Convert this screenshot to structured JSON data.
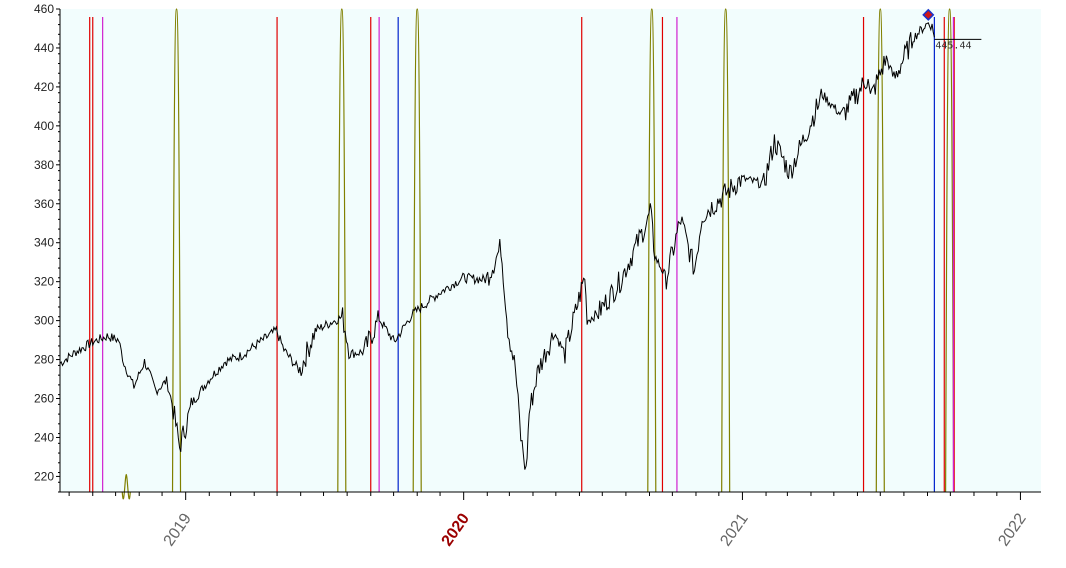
{
  "chart_data": {
    "type": "line",
    "title": "",
    "xlabel": "",
    "ylabel": "",
    "x_range": [
      "2018-07-20",
      "2022-01-28"
    ],
    "ylim": [
      212,
      460
    ],
    "yticks": [
      220,
      240,
      260,
      280,
      300,
      320,
      340,
      360,
      380,
      400,
      420,
      440,
      460
    ],
    "xticks": [
      {
        "label": "2019",
        "date": "2019-01-01",
        "highlight": false
      },
      {
        "label": "2020",
        "date": "2020-01-01",
        "highlight": true
      },
      {
        "label": "2021",
        "date": "2021-01-01",
        "highlight": false
      },
      {
        "label": "2022",
        "date": "2022-01-01",
        "highlight": false
      }
    ],
    "background": "#f2fdfd",
    "grid": false,
    "series": [
      {
        "color": "#000000",
        "points": [
          [
            "2018-07-20",
            278
          ],
          [
            "2018-08-10",
            284
          ],
          [
            "2018-09-01",
            289
          ],
          [
            "2018-09-20",
            292
          ],
          [
            "2018-10-05",
            290
          ],
          [
            "2018-10-12",
            278
          ],
          [
            "2018-10-25",
            266
          ],
          [
            "2018-11-08",
            279
          ],
          [
            "2018-11-23",
            264
          ],
          [
            "2018-12-07",
            269
          ],
          [
            "2018-12-14",
            258
          ],
          [
            "2018-12-24",
            235
          ],
          [
            "2019-01-10",
            258
          ],
          [
            "2019-02-01",
            270
          ],
          [
            "2019-02-22",
            279
          ],
          [
            "2019-03-15",
            282
          ],
          [
            "2019-04-05",
            288
          ],
          [
            "2019-04-30",
            295
          ],
          [
            "2019-05-10",
            285
          ],
          [
            "2019-05-31",
            274
          ],
          [
            "2019-06-20",
            295
          ],
          [
            "2019-07-26",
            302
          ],
          [
            "2019-08-05",
            283
          ],
          [
            "2019-08-23",
            284
          ],
          [
            "2019-09-12",
            301
          ],
          [
            "2019-10-02",
            289
          ],
          [
            "2019-10-25",
            303
          ],
          [
            "2019-11-29",
            314
          ],
          [
            "2019-12-31",
            322
          ],
          [
            "2020-01-31",
            321
          ],
          [
            "2020-02-19",
            338
          ],
          [
            "2020-02-28",
            296
          ],
          [
            "2020-03-09",
            275
          ],
          [
            "2020-03-16",
            240
          ],
          [
            "2020-03-23",
            222
          ],
          [
            "2020-03-27",
            253
          ],
          [
            "2020-04-08",
            275
          ],
          [
            "2020-04-29",
            294
          ],
          [
            "2020-05-13",
            283
          ],
          [
            "2020-06-08",
            323
          ],
          [
            "2020-06-11",
            300
          ],
          [
            "2020-06-26",
            304
          ],
          [
            "2020-07-24",
            320
          ],
          [
            "2020-08-28",
            350
          ],
          [
            "2020-09-02",
            357
          ],
          [
            "2020-09-08",
            333
          ],
          [
            "2020-09-23",
            322
          ],
          [
            "2020-10-12",
            352
          ],
          [
            "2020-10-30",
            326
          ],
          [
            "2020-11-09",
            354
          ],
          [
            "2020-12-31",
            373
          ],
          [
            "2021-01-29",
            370
          ],
          [
            "2021-02-12",
            392
          ],
          [
            "2021-03-04",
            376
          ],
          [
            "2021-04-16",
            416
          ],
          [
            "2021-05-12",
            405
          ],
          [
            "2021-06-15",
            425
          ],
          [
            "2021-06-18",
            414
          ],
          [
            "2021-07-09",
            435
          ],
          [
            "2021-07-19",
            424
          ],
          [
            "2021-08-13",
            445
          ],
          [
            "2021-09-02",
            453
          ],
          [
            "2021-09-07",
            451
          ],
          [
            "2021-09-10",
            445.44
          ]
        ]
      }
    ],
    "last_value": {
      "date": "2021-09-10",
      "value": "445.44"
    },
    "peak_marker": {
      "date": "2021-09-02",
      "value": 457
    },
    "vertical_lines": [
      {
        "date": "2018-08-28",
        "color": "#e00000"
      },
      {
        "date": "2018-09-01",
        "color": "#e00000"
      },
      {
        "date": "2018-09-14",
        "color": "#d020d0"
      },
      {
        "date": "2019-05-01",
        "color": "#e00000"
      },
      {
        "date": "2019-09-01",
        "color": "#e00000"
      },
      {
        "date": "2019-09-12",
        "color": "#d020d0"
      },
      {
        "date": "2019-10-07",
        "color": "#0022cc"
      },
      {
        "date": "2020-06-04",
        "color": "#e00000"
      },
      {
        "date": "2020-09-18",
        "color": "#e00000"
      },
      {
        "date": "2020-10-07",
        "color": "#d020d0"
      },
      {
        "date": "2021-06-09",
        "color": "#e00000"
      },
      {
        "date": "2021-09-10",
        "color": "#0022cc"
      },
      {
        "date": "2021-09-23",
        "color": "#e00000"
      },
      {
        "date": "2021-10-06",
        "color": "#e00000"
      },
      {
        "date": "2021-10-05",
        "color": "#d020d0"
      }
    ],
    "olive_peaks": [
      {
        "date": "2018-10-15",
        "top": 221
      },
      {
        "date": "2018-12-20",
        "top": 460
      },
      {
        "date": "2019-07-25",
        "top": 460
      },
      {
        "date": "2019-11-01",
        "top": 460
      },
      {
        "date": "2020-09-04",
        "top": 460
      },
      {
        "date": "2020-12-10",
        "top": 460
      },
      {
        "date": "2021-07-01",
        "top": 460
      },
      {
        "date": "2021-09-30",
        "top": 460
      }
    ],
    "line_colors": {
      "price": "#000000",
      "olive": "#808000"
    }
  }
}
